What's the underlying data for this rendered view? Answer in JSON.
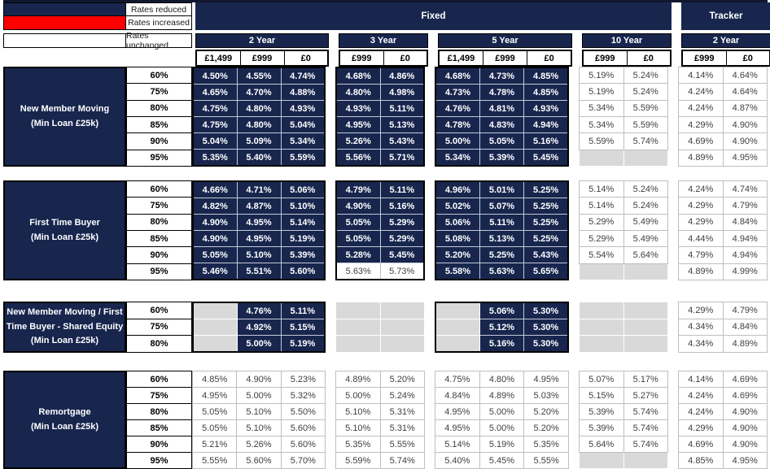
{
  "colors": {
    "reduced_navy": "#18264E",
    "increased_red": "#FF0000",
    "unchanged_white": "#FFFFFF",
    "empty_gray": "#D9D9D9"
  },
  "legend": {
    "reduced": "Rates reduced",
    "increased": "Rates increased",
    "unchanged": "Rates unchanged"
  },
  "header": {
    "fixed_label": "Fixed",
    "tracker_label": "Tracker",
    "groups": [
      {
        "label": "2 Year",
        "family": "fixed",
        "fees": [
          "£1,499",
          "£999",
          "£0"
        ]
      },
      {
        "label": "3 Year",
        "family": "fixed",
        "fees": [
          "£999",
          "£0"
        ]
      },
      {
        "label": "5 Year",
        "family": "fixed",
        "fees": [
          "£1,499",
          "£999",
          "£0"
        ]
      },
      {
        "label": "10 Year",
        "family": "fixed",
        "fees": [
          "£999",
          "£0"
        ]
      },
      {
        "label": "2 Year",
        "family": "tracker",
        "fees": [
          "£999",
          "£0"
        ]
      }
    ]
  },
  "cell_state_key": {
    "r": "rate reduced",
    "u": "rate unchanged",
    "e": "no product"
  },
  "sections": [
    {
      "label": "New Member Moving\n(Min Loan £25k)",
      "rows": [
        {
          "ltv": "60%",
          "cells": [
            "r:4.50%",
            "r:4.55%",
            "r:4.74%",
            "r:4.68%",
            "r:4.86%",
            "r:4.68%",
            "r:4.73%",
            "r:4.85%",
            "u:5.19%",
            "u:5.24%",
            "u:4.14%",
            "u:4.64%"
          ]
        },
        {
          "ltv": "75%",
          "cells": [
            "r:4.65%",
            "r:4.70%",
            "r:4.88%",
            "r:4.80%",
            "r:4.98%",
            "r:4.73%",
            "r:4.78%",
            "r:4.85%",
            "u:5.19%",
            "u:5.24%",
            "u:4.24%",
            "u:4.64%"
          ]
        },
        {
          "ltv": "80%",
          "cells": [
            "r:4.75%",
            "r:4.80%",
            "r:4.93%",
            "r:4.93%",
            "r:5.11%",
            "r:4.76%",
            "r:4.81%",
            "r:4.93%",
            "u:5.34%",
            "u:5.59%",
            "u:4.24%",
            "u:4.87%"
          ]
        },
        {
          "ltv": "85%",
          "cells": [
            "r:4.75%",
            "r:4.80%",
            "r:5.04%",
            "r:4.95%",
            "r:5.13%",
            "r:4.78%",
            "r:4.83%",
            "r:4.94%",
            "u:5.34%",
            "u:5.59%",
            "u:4.29%",
            "u:4.90%"
          ]
        },
        {
          "ltv": "90%",
          "cells": [
            "r:5.04%",
            "r:5.09%",
            "r:5.34%",
            "r:5.26%",
            "r:5.43%",
            "r:5.00%",
            "r:5.05%",
            "r:5.16%",
            "u:5.59%",
            "u:5.74%",
            "u:4.69%",
            "u:4.90%"
          ]
        },
        {
          "ltv": "95%",
          "cells": [
            "r:5.35%",
            "r:5.40%",
            "r:5.59%",
            "r:5.56%",
            "r:5.71%",
            "r:5.34%",
            "r:5.39%",
            "r:5.45%",
            "e:",
            "e:",
            "u:4.89%",
            "u:4.95%"
          ]
        }
      ]
    },
    {
      "label": "First Time Buyer\n(Min Loan £25k)",
      "rows": [
        {
          "ltv": "60%",
          "cells": [
            "r:4.66%",
            "r:4.71%",
            "r:5.06%",
            "r:4.79%",
            "r:5.11%",
            "r:4.96%",
            "r:5.01%",
            "r:5.25%",
            "u:5.14%",
            "u:5.24%",
            "u:4.24%",
            "u:4.74%"
          ]
        },
        {
          "ltv": "75%",
          "cells": [
            "r:4.82%",
            "r:4.87%",
            "r:5.10%",
            "r:4.90%",
            "r:5.16%",
            "r:5.02%",
            "r:5.07%",
            "r:5.25%",
            "u:5.14%",
            "u:5.24%",
            "u:4.29%",
            "u:4.79%"
          ]
        },
        {
          "ltv": "80%",
          "cells": [
            "r:4.90%",
            "r:4.95%",
            "r:5.14%",
            "r:5.05%",
            "r:5.29%",
            "r:5.06%",
            "r:5.11%",
            "r:5.25%",
            "u:5.29%",
            "u:5.49%",
            "u:4.29%",
            "u:4.84%"
          ]
        },
        {
          "ltv": "85%",
          "cells": [
            "r:4.90%",
            "r:4.95%",
            "r:5.19%",
            "r:5.05%",
            "r:5.29%",
            "r:5.08%",
            "r:5.13%",
            "r:5.25%",
            "u:5.29%",
            "u:5.49%",
            "u:4.44%",
            "u:4.94%"
          ]
        },
        {
          "ltv": "90%",
          "cells": [
            "r:5.05%",
            "r:5.10%",
            "r:5.39%",
            "r:5.28%",
            "r:5.45%",
            "r:5.20%",
            "r:5.25%",
            "r:5.43%",
            "u:5.54%",
            "u:5.64%",
            "u:4.79%",
            "u:4.94%"
          ]
        },
        {
          "ltv": "95%",
          "cells": [
            "r:5.46%",
            "r:5.51%",
            "r:5.60%",
            "u:5.63%",
            "u:5.73%",
            "r:5.58%",
            "r:5.63%",
            "r:5.65%",
            "e:",
            "e:",
            "u:4.89%",
            "u:4.99%"
          ]
        }
      ]
    },
    {
      "label": "New Member Moving / First\nTime Buyer - Shared Equity\n(Min Loan £25k)",
      "rows": [
        {
          "ltv": "60%",
          "cells": [
            "e:",
            "r:4.76%",
            "r:5.11%",
            "e:",
            "e:",
            "e:",
            "r:5.06%",
            "r:5.30%",
            "e:",
            "e:",
            "u:4.29%",
            "u:4.79%"
          ]
        },
        {
          "ltv": "75%",
          "cells": [
            "e:",
            "r:4.92%",
            "r:5.15%",
            "e:",
            "e:",
            "e:",
            "r:5.12%",
            "r:5.30%",
            "e:",
            "e:",
            "u:4.34%",
            "u:4.84%"
          ]
        },
        {
          "ltv": "80%",
          "cells": [
            "e:",
            "r:5.00%",
            "r:5.19%",
            "e:",
            "e:",
            "e:",
            "r:5.16%",
            "r:5.30%",
            "e:",
            "e:",
            "u:4.34%",
            "u:4.89%"
          ]
        }
      ]
    },
    {
      "label": "Remortgage\n(Min Loan £25k)",
      "rows": [
        {
          "ltv": "60%",
          "cells": [
            "u:4.85%",
            "u:4.90%",
            "u:5.23%",
            "u:4.89%",
            "u:5.20%",
            "u:4.75%",
            "u:4.80%",
            "u:4.95%",
            "u:5.07%",
            "u:5.17%",
            "u:4.14%",
            "u:4.69%"
          ]
        },
        {
          "ltv": "75%",
          "cells": [
            "u:4.95%",
            "u:5.00%",
            "u:5.32%",
            "u:5.00%",
            "u:5.24%",
            "u:4.84%",
            "u:4.89%",
            "u:5.03%",
            "u:5.15%",
            "u:5.27%",
            "u:4.24%",
            "u:4.69%"
          ]
        },
        {
          "ltv": "80%",
          "cells": [
            "u:5.05%",
            "u:5.10%",
            "u:5.50%",
            "u:5.10%",
            "u:5.31%",
            "u:4.95%",
            "u:5.00%",
            "u:5.20%",
            "u:5.39%",
            "u:5.74%",
            "u:4.24%",
            "u:4.90%"
          ]
        },
        {
          "ltv": "85%",
          "cells": [
            "u:5.05%",
            "u:5.10%",
            "u:5.60%",
            "u:5.10%",
            "u:5.31%",
            "u:4.95%",
            "u:5.00%",
            "u:5.20%",
            "u:5.39%",
            "u:5.74%",
            "u:4.29%",
            "u:4.90%"
          ]
        },
        {
          "ltv": "90%",
          "cells": [
            "u:5.21%",
            "u:5.26%",
            "u:5.60%",
            "u:5.35%",
            "u:5.55%",
            "u:5.14%",
            "u:5.19%",
            "u:5.35%",
            "u:5.64%",
            "u:5.74%",
            "u:4.69%",
            "u:4.90%"
          ]
        },
        {
          "ltv": "95%",
          "cells": [
            "u:5.55%",
            "u:5.60%",
            "u:5.70%",
            "u:5.59%",
            "u:5.74%",
            "u:5.40%",
            "u:5.45%",
            "u:5.55%",
            "e:",
            "e:",
            "u:4.85%",
            "u:4.95%"
          ]
        }
      ]
    }
  ]
}
